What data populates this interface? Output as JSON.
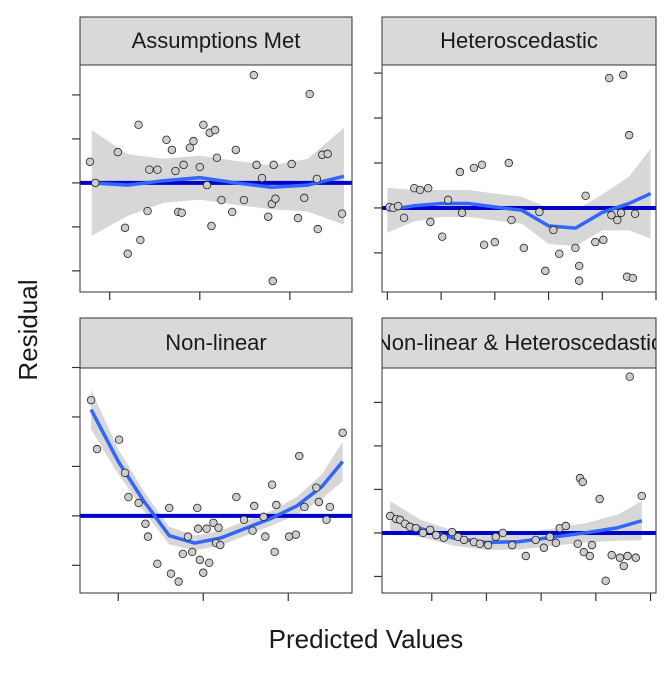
{
  "xlabel": "Predicted Values",
  "ylabel": "Residual",
  "chart_data": [
    {
      "type": "scatter",
      "title": "Assumptions Met",
      "xlim": [
        0.67,
        3.69
      ],
      "ylim": [
        -2.48,
        2.68
      ],
      "xticks": [
        1,
        2,
        3
      ],
      "yticks": [
        -2,
        -1,
        0,
        1,
        2
      ],
      "point_color": "#cccccc",
      "hline": 0,
      "hline_color": "#0000cc",
      "smooth_color": "#3366ff",
      "band_color": "#d3d3d3",
      "x": [
        0.78,
        0.84,
        1.09,
        1.17,
        1.2,
        1.32,
        1.34,
        1.42,
        1.44,
        1.53,
        1.63,
        1.69,
        1.73,
        1.76,
        1.8,
        1.82,
        1.89,
        1.93,
        2.0,
        2.04,
        2.08,
        2.11,
        2.13,
        2.17,
        2.19,
        2.24,
        2.36,
        2.4,
        2.49,
        2.6,
        2.63,
        2.69,
        2.76,
        2.8,
        2.82,
        2.84,
        2.81,
        3.02,
        3.09,
        3.16,
        3.22,
        3.3,
        3.31,
        3.36,
        3.42,
        3.58
      ],
      "values": [
        0.48,
        0,
        0.7,
        -1.02,
        -1.61,
        1.32,
        -1.3,
        -0.64,
        0.3,
        0.3,
        0.98,
        0.75,
        0.27,
        -0.66,
        -0.68,
        0.41,
        0.8,
        0.95,
        0.36,
        1.32,
        -0.05,
        1.14,
        -0.98,
        1.2,
        0.57,
        -0.39,
        -0.66,
        0.75,
        -0.39,
        2.45,
        0.41,
        0.11,
        -0.77,
        -0.48,
        0.41,
        -0.36,
        -2.23,
        0.43,
        -0.8,
        -0.34,
        2.02,
        0.09,
        -1.05,
        0.64,
        0.66,
        -0.7
      ],
      "smooth": {
        "x": [
          0.8,
          1.2,
          1.6,
          2.0,
          2.4,
          2.8,
          3.2,
          3.6
        ],
        "values": [
          0,
          -0.05,
          0.05,
          0.12,
          0,
          -0.1,
          -0.05,
          0.15
        ],
        "lower": [
          -1.2,
          -0.75,
          -0.45,
          -0.38,
          -0.5,
          -0.6,
          -0.65,
          -0.95
        ],
        "upper": [
          1.2,
          0.65,
          0.55,
          0.62,
          0.5,
          0.4,
          0.55,
          1.25
        ]
      }
    },
    {
      "type": "scatter",
      "title": "Heteroscedastic",
      "xlim": [
        -0.1,
        5.0
      ],
      "ylim": [
        -1.87,
        3.18
      ],
      "xticks": [
        0,
        1,
        2,
        3,
        4,
        5
      ],
      "yticks": [
        -1,
        0,
        1,
        2,
        3
      ],
      "point_color": "#cccccc",
      "hline": 0,
      "hline_color": "#0000cc",
      "smooth_color": "#3366ff",
      "band_color": "#d3d3d3",
      "x": [
        0.04,
        0.11,
        0.2,
        0.31,
        0.5,
        0.61,
        0.76,
        0.8,
        1.02,
        1.13,
        1.35,
        1.39,
        1.61,
        1.76,
        1.8,
        2.0,
        2.26,
        2.31,
        2.54,
        2.83,
        2.94,
        3.09,
        3.2,
        3.5,
        3.57,
        3.57,
        3.69,
        3.87,
        4.02,
        4.17,
        4.28,
        4.35,
        4.46,
        4.57,
        4.61,
        4.13,
        4.39,
        4.5
      ],
      "values": [
        0.02,
        0,
        0.04,
        -0.22,
        0.44,
        0.4,
        0.44,
        -0.31,
        -0.64,
        0.18,
        0.8,
        -0.11,
        0.89,
        0.96,
        -0.82,
        -0.76,
        1.0,
        -0.27,
        -0.89,
        -0.09,
        -1.4,
        -0.49,
        -1.02,
        -0.89,
        -1.29,
        -1.62,
        0.27,
        -0.76,
        -0.71,
        -0.16,
        -0.27,
        -0.11,
        -1.53,
        -1.56,
        -0.13,
        2.89,
        2.96,
        1.62
      ],
      "smooth": {
        "x": [
          0,
          0.5,
          1,
          1.5,
          2,
          2.5,
          3,
          3.5,
          4,
          4.5,
          4.9
        ],
        "values": [
          -0.05,
          0.05,
          0.1,
          0.1,
          0.02,
          -0.05,
          -0.4,
          -0.45,
          -0.1,
          0.1,
          0.32
        ],
        "lower": [
          -0.55,
          -0.3,
          -0.2,
          -0.2,
          -0.28,
          -0.35,
          -0.8,
          -0.85,
          -0.5,
          -0.5,
          -0.68
        ],
        "upper": [
          0.45,
          0.4,
          0.4,
          0.4,
          0.32,
          0.25,
          0,
          -0.05,
          0.3,
          0.7,
          1.32
        ]
      }
    },
    {
      "type": "scatter",
      "title": "Non-linear",
      "xlim": [
        0.55,
        3.75
      ],
      "ylim": [
        -1.56,
        2.99
      ],
      "xticks": [
        1,
        2,
        3
      ],
      "yticks": [
        -1,
        0,
        1,
        2,
        3
      ],
      "point_color": "#cccccc",
      "hline": 0,
      "hline_color": "#0000cc",
      "smooth_color": "#3366ff",
      "band_color": "#d3d3d3",
      "x": [
        0.68,
        0.75,
        1.01,
        1.08,
        1.12,
        1.24,
        1.32,
        1.35,
        1.46,
        1.6,
        1.62,
        1.71,
        1.76,
        1.82,
        1.87,
        1.93,
        1.94,
        1.96,
        2.0,
        2.04,
        2.07,
        2.12,
        2.15,
        2.18,
        2.2,
        2.39,
        2.48,
        2.58,
        2.6,
        2.71,
        2.73,
        2.81,
        2.84,
        2.86,
        3.01,
        3.09,
        3.13,
        3.19,
        3.33,
        3.36,
        3.45,
        3.49,
        3.64
      ],
      "values": [
        2.34,
        1.35,
        1.54,
        0.87,
        0.38,
        0.26,
        -0.16,
        -0.42,
        -0.97,
        0.16,
        -1.17,
        -1.33,
        -0.77,
        -0.42,
        -0.73,
        0.16,
        -0.26,
        -0.89,
        -1.15,
        -0.26,
        -0.95,
        -0.14,
        -0.55,
        -0.24,
        -0.59,
        0.38,
        -0.08,
        -0.3,
        0.2,
        -0.02,
        -0.42,
        0.63,
        -0.73,
        0.22,
        -0.42,
        -0.38,
        1.21,
        0.18,
        0.57,
        0.28,
        -0.08,
        0.18,
        1.68
      ],
      "smooth": {
        "x": [
          0.68,
          1.0,
          1.3,
          1.6,
          1.9,
          2.2,
          2.5,
          2.8,
          3.1,
          3.4,
          3.64
        ],
        "values": [
          2.15,
          1.1,
          0.3,
          -0.4,
          -0.55,
          -0.45,
          -0.25,
          -0.05,
          0.2,
          0.6,
          1.1
        ],
        "lower": [
          1.75,
          0.85,
          0.1,
          -0.58,
          -0.7,
          -0.6,
          -0.4,
          -0.2,
          0.02,
          0.35,
          0.7
        ],
        "upper": [
          2.55,
          1.35,
          0.5,
          -0.22,
          -0.4,
          -0.3,
          -0.1,
          0.1,
          0.38,
          0.85,
          1.5
        ]
      }
    },
    {
      "type": "scatter",
      "title": "Non-linear & Heteroscedastic",
      "xlim": [
        0.09,
        5.1
      ],
      "ylim": [
        -1.38,
        3.79
      ],
      "xticks": [
        1,
        2,
        3,
        4,
        5
      ],
      "yticks": [
        -1,
        0,
        1,
        2,
        3
      ],
      "point_color": "#cccccc",
      "hline": 0,
      "hline_color": "#0000cc",
      "smooth_color": "#3366ff",
      "band_color": "#d3d3d3",
      "x": [
        0.24,
        0.35,
        0.42,
        0.51,
        0.6,
        0.71,
        0.84,
        0.97,
        1.08,
        1.22,
        1.37,
        1.48,
        1.59,
        1.77,
        1.88,
        2.03,
        2.17,
        2.3,
        2.47,
        2.72,
        2.9,
        3.05,
        3.16,
        3.27,
        3.34,
        3.45,
        3.67,
        3.71,
        3.76,
        3.78,
        3.89,
        3.93,
        4.07,
        4.18,
        4.29,
        4.44,
        4.51,
        4.58,
        4.62,
        4.73,
        4.84
      ],
      "values": [
        0.39,
        0.32,
        0.3,
        0.21,
        0.14,
        0.11,
        0,
        0.07,
        -0.05,
        -0.11,
        0.02,
        -0.09,
        -0.16,
        -0.21,
        -0.25,
        -0.28,
        -0.09,
        0,
        -0.28,
        -0.53,
        -0.16,
        -0.34,
        -0.09,
        -0.23,
        0.11,
        0.16,
        -0.25,
        1.26,
        1.17,
        -0.44,
        -0.53,
        -0.28,
        0.78,
        -1.1,
        -0.51,
        -0.57,
        -0.76,
        -0.53,
        3.59,
        -0.57,
        0.85
      ],
      "smooth": {
        "x": [
          0.24,
          0.8,
          1.4,
          2.0,
          2.6,
          3.2,
          3.8,
          4.4,
          4.84
        ],
        "values": [
          0.38,
          0.1,
          -0.12,
          -0.22,
          -0.2,
          -0.1,
          0,
          0.12,
          0.28
        ],
        "lower": [
          0.03,
          -0.1,
          -0.29,
          -0.39,
          -0.38,
          -0.3,
          -0.22,
          -0.18,
          -0.17
        ],
        "upper": [
          0.73,
          0.3,
          0.05,
          -0.05,
          -0.02,
          0.1,
          0.22,
          0.42,
          0.73
        ]
      }
    }
  ]
}
